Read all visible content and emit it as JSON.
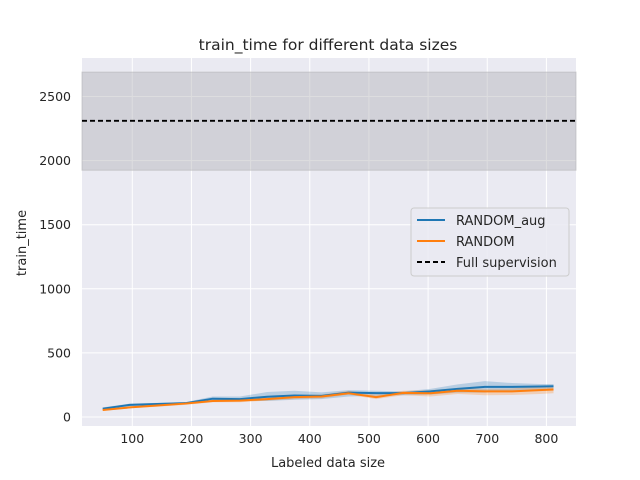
{
  "chart_data": {
    "type": "line",
    "title": "train_time for different data sizes",
    "xlabel": "Labeled data size",
    "ylabel": "train_time",
    "xlim": [
      15,
      850
    ],
    "ylim": [
      -70,
      2800
    ],
    "xticks": [
      100,
      200,
      300,
      400,
      500,
      600,
      700,
      800
    ],
    "yticks": [
      0,
      500,
      1000,
      1500,
      2000,
      2500
    ],
    "grid": true,
    "legend_position": "center-right",
    "x": [
      50,
      96,
      142,
      190,
      236,
      282,
      328,
      374,
      420,
      466,
      512,
      558,
      604,
      650,
      696,
      742,
      788,
      812
    ],
    "series": [
      {
        "name": "RANDOM_aug",
        "color": "#1f77b4",
        "values": [
          65,
          95,
          102,
          108,
          143,
          140,
          158,
          168,
          165,
          190,
          186,
          186,
          200,
          220,
          235,
          235,
          238,
          240
        ],
        "band_lower": [
          58,
          85,
          95,
          100,
          125,
          125,
          125,
          135,
          140,
          160,
          165,
          170,
          175,
          190,
          190,
          205,
          210,
          215
        ],
        "band_upper": [
          75,
          105,
          110,
          116,
          160,
          160,
          195,
          205,
          192,
          210,
          205,
          200,
          220,
          255,
          280,
          265,
          258,
          258
        ]
      },
      {
        "name": "RANDOM",
        "color": "#ff7f0e",
        "values": [
          55,
          75,
          90,
          105,
          125,
          128,
          140,
          155,
          160,
          185,
          155,
          188,
          185,
          205,
          200,
          200,
          210,
          215
        ],
        "band_lower": [
          48,
          68,
          80,
          95,
          115,
          115,
          128,
          140,
          145,
          175,
          140,
          170,
          160,
          180,
          170,
          172,
          180,
          185
        ],
        "band_upper": [
          62,
          85,
          100,
          115,
          135,
          140,
          155,
          170,
          175,
          205,
          175,
          205,
          210,
          225,
          220,
          222,
          240,
          245
        ]
      }
    ],
    "reference": {
      "name": "Full supervision",
      "color": "#000000",
      "value": 2310,
      "band": [
        1925,
        2690
      ]
    }
  }
}
